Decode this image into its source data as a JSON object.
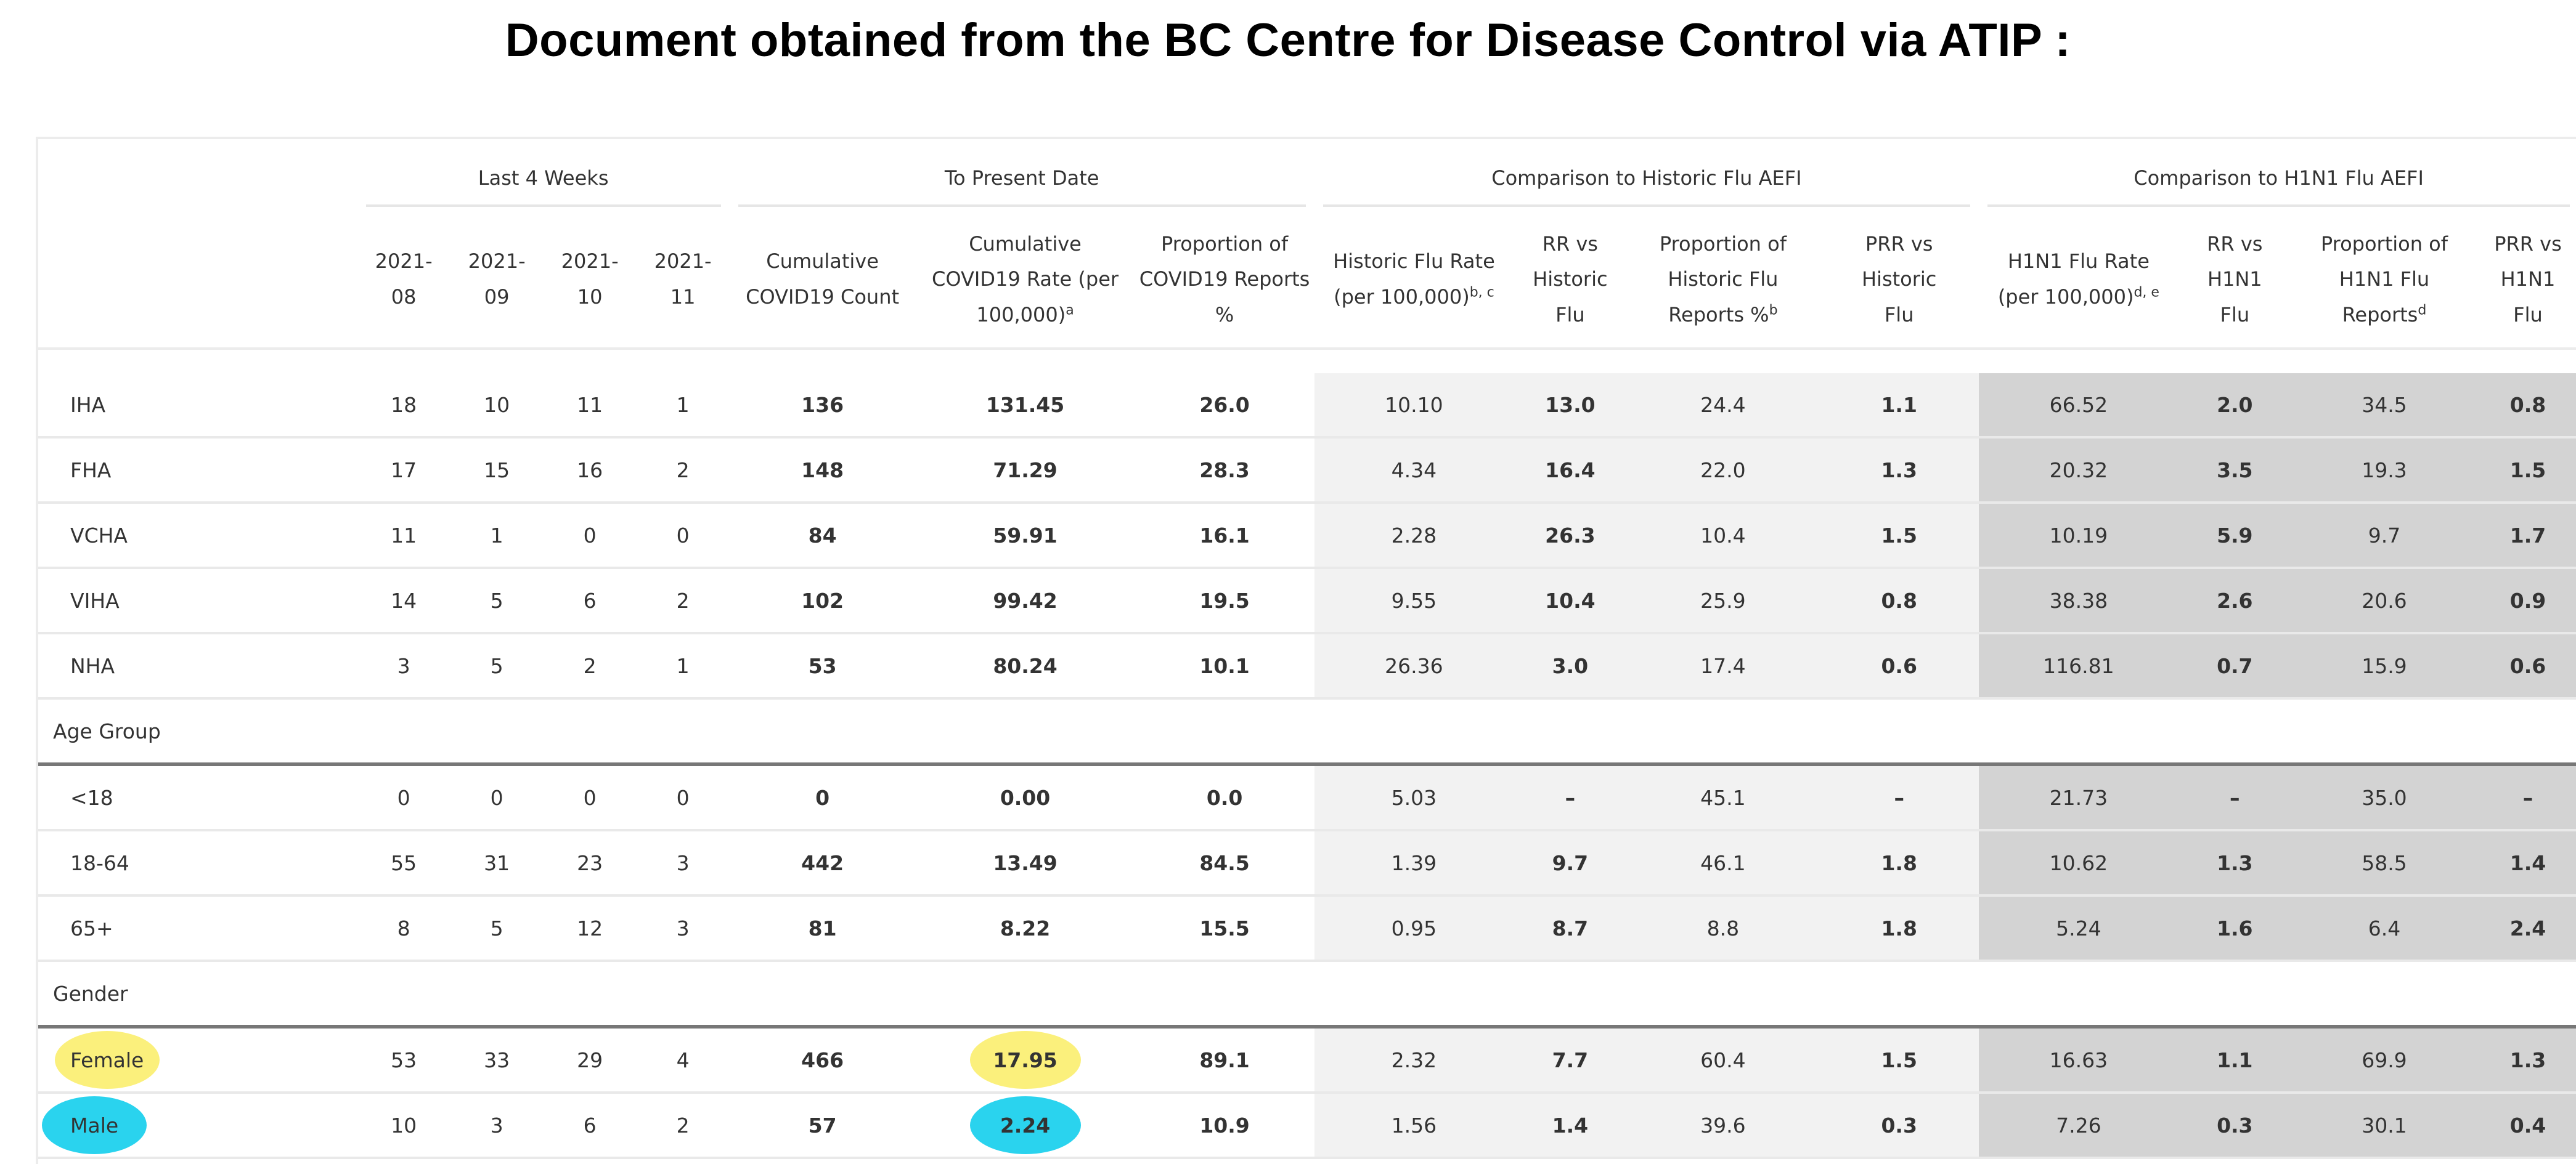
{
  "title": "Document obtained from the BC Centre for Disease Control via ATIP :",
  "column_groups": {
    "last4": "Last 4 Weeks",
    "present": "To Present Date",
    "historic": "Comparison to Historic Flu AEFI",
    "h1n1": "Comparison to H1N1 Flu AEFI"
  },
  "headers": {
    "w08": [
      "2021-",
      "08"
    ],
    "w09": [
      "2021-",
      "09"
    ],
    "w10": [
      "2021-",
      "10"
    ],
    "w11": [
      "2021-",
      "11"
    ],
    "cum_count": [
      "Cumulative",
      "COVID19 Count"
    ],
    "cum_rate": [
      "Cumulative",
      "COVID19 Rate (per",
      "100,000)",
      "a"
    ],
    "prop": [
      "Proportion of",
      "COVID19 Reports",
      "%"
    ],
    "hist_rate": [
      "Historic Flu Rate",
      "(per 100,000)",
      "b, c"
    ],
    "rr_hist": [
      "RR vs",
      "Historic",
      "Flu"
    ],
    "prop_hist": [
      "Proportion of",
      "Historic Flu",
      "Reports %",
      "b"
    ],
    "prr_hist": [
      "PRR vs",
      "Historic",
      "Flu"
    ],
    "h1n1_rate": [
      "H1N1 Flu Rate",
      "(per 100,000)",
      "d, e"
    ],
    "rr_h1n1": [
      "RR vs",
      "H1N1",
      "Flu"
    ],
    "prop_h1n1": [
      "Proportion of",
      "H1N1 Flu",
      "Reports",
      "d"
    ],
    "prr_h1n1": [
      "PRR vs",
      "H1N1",
      "Flu"
    ]
  },
  "sections": {
    "age": "Age Group",
    "gender": "Gender"
  },
  "region_rows": [
    {
      "label": "IHA",
      "w08": "18",
      "w09": "10",
      "w10": "11",
      "w11": "1",
      "cum_count": "136",
      "cum_rate": "131.45",
      "prop": "26.0",
      "hist_rate": "10.10",
      "rr_hist": "13.0",
      "prop_hist": "24.4",
      "prr_hist": "1.1",
      "h1n1_rate": "66.52",
      "rr_h1n1": "2.0",
      "prop_h1n1": "34.5",
      "prr_h1n1": "0.8"
    },
    {
      "label": "FHA",
      "w08": "17",
      "w09": "15",
      "w10": "16",
      "w11": "2",
      "cum_count": "148",
      "cum_rate": "71.29",
      "prop": "28.3",
      "hist_rate": "4.34",
      "rr_hist": "16.4",
      "prop_hist": "22.0",
      "prr_hist": "1.3",
      "h1n1_rate": "20.32",
      "rr_h1n1": "3.5",
      "prop_h1n1": "19.3",
      "prr_h1n1": "1.5"
    },
    {
      "label": "VCHA",
      "w08": "11",
      "w09": "1",
      "w10": "0",
      "w11": "0",
      "cum_count": "84",
      "cum_rate": "59.91",
      "prop": "16.1",
      "hist_rate": "2.28",
      "rr_hist": "26.3",
      "prop_hist": "10.4",
      "prr_hist": "1.5",
      "h1n1_rate": "10.19",
      "rr_h1n1": "5.9",
      "prop_h1n1": "9.7",
      "prr_h1n1": "1.7"
    },
    {
      "label": "VIHA",
      "w08": "14",
      "w09": "5",
      "w10": "6",
      "w11": "2",
      "cum_count": "102",
      "cum_rate": "99.42",
      "prop": "19.5",
      "hist_rate": "9.55",
      "rr_hist": "10.4",
      "prop_hist": "25.9",
      "prr_hist": "0.8",
      "h1n1_rate": "38.38",
      "rr_h1n1": "2.6",
      "prop_h1n1": "20.6",
      "prr_h1n1": "0.9"
    },
    {
      "label": "NHA",
      "w08": "3",
      "w09": "5",
      "w10": "2",
      "w11": "1",
      "cum_count": "53",
      "cum_rate": "80.24",
      "prop": "10.1",
      "hist_rate": "26.36",
      "rr_hist": "3.0",
      "prop_hist": "17.4",
      "prr_hist": "0.6",
      "h1n1_rate": "116.81",
      "rr_h1n1": "0.7",
      "prop_h1n1": "15.9",
      "prr_h1n1": "0.6"
    }
  ],
  "age_rows": [
    {
      "label": "<18",
      "w08": "0",
      "w09": "0",
      "w10": "0",
      "w11": "0",
      "cum_count": "0",
      "cum_rate": "0.00",
      "prop": "0.0",
      "hist_rate": "5.03",
      "rr_hist": "–",
      "prop_hist": "45.1",
      "prr_hist": "–",
      "h1n1_rate": "21.73",
      "rr_h1n1": "–",
      "prop_h1n1": "35.0",
      "prr_h1n1": "–"
    },
    {
      "label": "18-64",
      "w08": "55",
      "w09": "31",
      "w10": "23",
      "w11": "3",
      "cum_count": "442",
      "cum_rate": "13.49",
      "prop": "84.5",
      "hist_rate": "1.39",
      "rr_hist": "9.7",
      "prop_hist": "46.1",
      "prr_hist": "1.8",
      "h1n1_rate": "10.62",
      "rr_h1n1": "1.3",
      "prop_h1n1": "58.5",
      "prr_h1n1": "1.4"
    },
    {
      "label": "65+",
      "w08": "8",
      "w09": "5",
      "w10": "12",
      "w11": "3",
      "cum_count": "81",
      "cum_rate": "8.22",
      "prop": "15.5",
      "hist_rate": "0.95",
      "rr_hist": "8.7",
      "prop_hist": "8.8",
      "prr_hist": "1.8",
      "h1n1_rate": "5.24",
      "rr_h1n1": "1.6",
      "prop_h1n1": "6.4",
      "prr_h1n1": "2.4"
    }
  ],
  "gender_rows": [
    {
      "label": "Female",
      "highlight": "#fbf07c",
      "w08": "53",
      "w09": "33",
      "w10": "29",
      "w11": "4",
      "cum_count": "466",
      "cum_rate": "17.95",
      "prop": "89.1",
      "hist_rate": "2.32",
      "rr_hist": "7.7",
      "prop_hist": "60.4",
      "prr_hist": "1.5",
      "h1n1_rate": "16.63",
      "rr_h1n1": "1.1",
      "prop_h1n1": "69.9",
      "prr_h1n1": "1.3"
    },
    {
      "label": "Male",
      "highlight": "#2ad3ee",
      "w08": "10",
      "w09": "3",
      "w10": "6",
      "w11": "2",
      "cum_count": "57",
      "cum_rate": "2.24",
      "prop": "10.9",
      "hist_rate": "1.56",
      "rr_hist": "1.4",
      "prop_hist": "39.6",
      "prr_hist": "0.3",
      "h1n1_rate": "7.26",
      "rr_h1n1": "0.3",
      "prop_h1n1": "30.1",
      "prr_h1n1": "0.4"
    }
  ]
}
